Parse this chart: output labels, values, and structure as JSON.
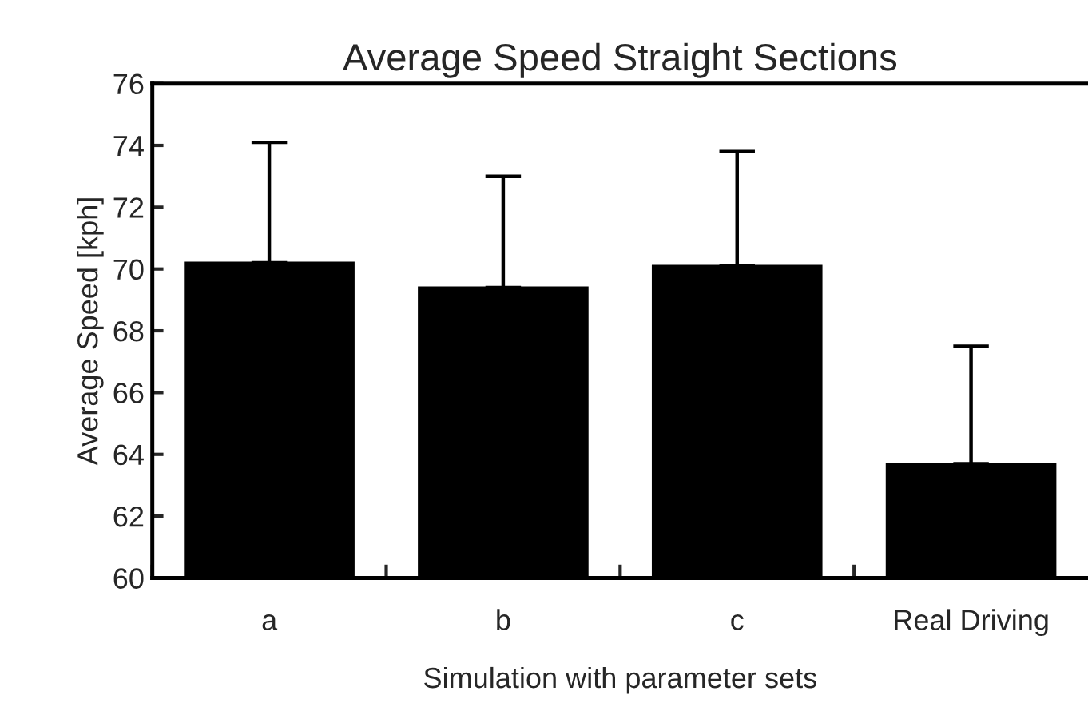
{
  "chart_data": {
    "type": "bar",
    "title": "Average Speed Straight Sections",
    "xlabel": "Simulation with parameter sets",
    "ylabel": "Average Speed [kph]",
    "categories": [
      "a",
      "b",
      "c",
      "Real Driving"
    ],
    "values": [
      70.2,
      69.4,
      70.1,
      63.7
    ],
    "errors": [
      [
        70.2,
        74.1
      ],
      [
        69.4,
        73.0
      ],
      [
        70.1,
        73.8
      ],
      [
        63.7,
        67.5
      ]
    ],
    "color": "#000000",
    "ylim": [
      60,
      76
    ],
    "yticks": [
      60,
      62,
      64,
      66,
      68,
      70,
      72,
      74,
      76
    ],
    "grid": false,
    "legend": false
  }
}
